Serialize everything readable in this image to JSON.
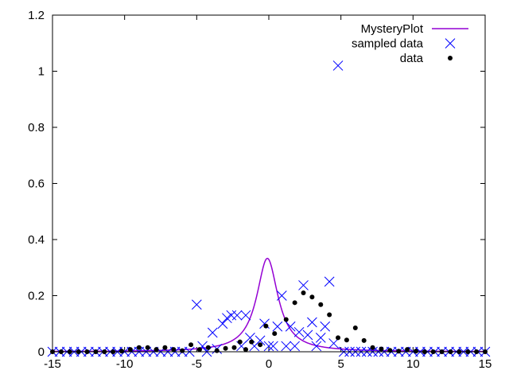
{
  "chart_data": {
    "type": "line",
    "title": "",
    "xlabel": "",
    "ylabel": "",
    "xlim": [
      -15,
      15
    ],
    "ylim": [
      0,
      1.2
    ],
    "x_ticks": [
      -15,
      -10,
      -5,
      0,
      5,
      10,
      15
    ],
    "y_ticks": [
      0,
      0.2,
      0.4,
      0.6,
      0.8,
      1,
      1.2
    ],
    "x_tick_labels": [
      "-15",
      "-10",
      "-5",
      "0",
      "5",
      "10",
      "15"
    ],
    "y_tick_labels": [
      "0",
      "0.2",
      "0.4",
      "0.6",
      "0.8",
      "1",
      "1.2"
    ],
    "grid": false,
    "legend_position": "top-right",
    "series": [
      {
        "name": "MysteryPlot",
        "kind": "line",
        "color": "#9400d3",
        "function": "lorentzian",
        "center": -0.1,
        "gamma": 0.9,
        "peak": 0.333
      },
      {
        "name": "sampled data",
        "kind": "cross",
        "color": "#0000ff",
        "points": [
          [
            -15,
            0
          ],
          [
            -14.5,
            0
          ],
          [
            -14,
            0
          ],
          [
            -13.5,
            0
          ],
          [
            -13,
            0
          ],
          [
            -12.5,
            0
          ],
          [
            -12,
            0
          ],
          [
            -11.5,
            0
          ],
          [
            -11,
            0
          ],
          [
            -10.5,
            0
          ],
          [
            -10,
            0
          ],
          [
            -9.5,
            0
          ],
          [
            -9,
            0
          ],
          [
            -8.5,
            0
          ],
          [
            -8,
            0
          ],
          [
            -7.5,
            0
          ],
          [
            -7,
            0
          ],
          [
            -6.5,
            0
          ],
          [
            -6,
            0
          ],
          [
            -5.5,
            0
          ],
          [
            -5,
            0.168
          ],
          [
            -4.6,
            0.02
          ],
          [
            -4.3,
            0
          ],
          [
            -3.9,
            0.068
          ],
          [
            -3.6,
            0.01
          ],
          [
            -3.2,
            0.1
          ],
          [
            -2.9,
            0.12
          ],
          [
            -2.6,
            0.13
          ],
          [
            -2.2,
            0.13
          ],
          [
            -1.9,
            0.02
          ],
          [
            -1.6,
            0.13
          ],
          [
            -1.3,
            0.05
          ],
          [
            -1,
            0.02
          ],
          [
            -0.6,
            0.04
          ],
          [
            -0.3,
            0.1
          ],
          [
            0,
            0.02
          ],
          [
            0.3,
            0.02
          ],
          [
            0.6,
            0.09
          ],
          [
            0.9,
            0.2
          ],
          [
            1.2,
            0.02
          ],
          [
            1.5,
            0.09
          ],
          [
            1.8,
            0.02
          ],
          [
            2.1,
            0.07
          ],
          [
            2.4,
            0.237
          ],
          [
            2.7,
            0.06
          ],
          [
            3,
            0.105
          ],
          [
            3.3,
            0.02
          ],
          [
            3.6,
            0.05
          ],
          [
            3.9,
            0.09
          ],
          [
            4.2,
            0.25
          ],
          [
            4.5,
            0.03
          ],
          [
            4.8,
            1.02
          ],
          [
            5.2,
            0
          ],
          [
            5.6,
            0
          ],
          [
            6,
            0
          ],
          [
            6.4,
            0
          ],
          [
            6.8,
            0
          ],
          [
            7.2,
            0
          ],
          [
            7.6,
            0
          ],
          [
            8,
            0
          ],
          [
            8.5,
            0
          ],
          [
            9,
            0
          ],
          [
            9.5,
            0
          ],
          [
            10,
            0
          ],
          [
            10.5,
            0
          ],
          [
            11,
            0
          ],
          [
            11.5,
            0
          ],
          [
            12,
            0
          ],
          [
            12.5,
            0
          ],
          [
            13,
            0
          ],
          [
            13.5,
            0
          ],
          [
            14,
            0
          ],
          [
            14.5,
            0
          ],
          [
            15,
            0
          ]
        ]
      },
      {
        "name": "data",
        "kind": "dot",
        "color": "#000000",
        "points": [
          [
            -15,
            0
          ],
          [
            -14.4,
            0
          ],
          [
            -13.8,
            0
          ],
          [
            -13.2,
            0
          ],
          [
            -12.6,
            0
          ],
          [
            -12,
            0
          ],
          [
            -11.4,
            0
          ],
          [
            -10.8,
            0
          ],
          [
            -10.2,
            0.002
          ],
          [
            -9.6,
            0.008
          ],
          [
            -9,
            0.015
          ],
          [
            -8.4,
            0.015
          ],
          [
            -7.8,
            0.008
          ],
          [
            -7.2,
            0.015
          ],
          [
            -6.6,
            0.008
          ],
          [
            -6,
            0.004
          ],
          [
            -5.4,
            0.025
          ],
          [
            -4.8,
            0.008
          ],
          [
            -4.2,
            0.015
          ],
          [
            -3.6,
            0.004
          ],
          [
            -3,
            0.012
          ],
          [
            -2.4,
            0.015
          ],
          [
            -2,
            0.035
          ],
          [
            -1.6,
            0.008
          ],
          [
            -1.2,
            0.035
          ],
          [
            -0.6,
            0.025
          ],
          [
            -0.2,
            0.092
          ],
          [
            0.4,
            0.065
          ],
          [
            1.2,
            0.115
          ],
          [
            1.8,
            0.175
          ],
          [
            2.4,
            0.21
          ],
          [
            3,
            0.195
          ],
          [
            3.6,
            0.168
          ],
          [
            4.2,
            0.132
          ],
          [
            4.8,
            0.05
          ],
          [
            5.4,
            0.042
          ],
          [
            6,
            0.085
          ],
          [
            6.6,
            0.04
          ],
          [
            7.2,
            0.015
          ],
          [
            7.8,
            0.01
          ],
          [
            8.4,
            0.005
          ],
          [
            9,
            0.002
          ],
          [
            9.6,
            0.008
          ],
          [
            10.2,
            0.002
          ],
          [
            10.8,
            0
          ],
          [
            11.4,
            0
          ],
          [
            12,
            0
          ],
          [
            12.6,
            0
          ],
          [
            13.2,
            0
          ],
          [
            13.8,
            0
          ],
          [
            14.4,
            0
          ],
          [
            15,
            0
          ]
        ]
      }
    ]
  }
}
